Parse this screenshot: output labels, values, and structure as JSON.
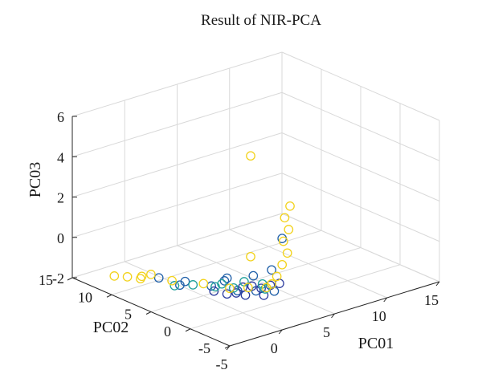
{
  "chart_data": {
    "type": "scatter",
    "title": "Result of NIR-PCA",
    "xlabel": "PC01",
    "ylabel": "PC02",
    "zlabel": "PC03",
    "x_ticks": [
      "-5",
      "0",
      "5",
      "10",
      "15"
    ],
    "y_ticks": [
      "-5",
      "0",
      "5",
      "10",
      "15"
    ],
    "z_ticks": [
      "-2",
      "0",
      "2",
      "4",
      "6"
    ],
    "xlim": [
      -5,
      15
    ],
    "ylim": [
      -5,
      15
    ],
    "zlim": [
      -2,
      6
    ],
    "grid": true,
    "marker": "open-circle",
    "series": [
      {
        "color": "#1f5fa8",
        "points": [
          [
            -2.0,
            8.0,
            -1.3
          ],
          [
            -1.0,
            6.0,
            -1.3
          ],
          [
            0.0,
            4.0,
            -1.35
          ],
          [
            1.0,
            2.0,
            -1.4
          ],
          [
            2.0,
            1.0,
            -1.4
          ],
          [
            3.0,
            0.0,
            -1.4
          ],
          [
            0.5,
            3.0,
            -1.0
          ],
          [
            2.5,
            2.0,
            -0.9
          ],
          [
            3.5,
            1.0,
            -0.6
          ],
          [
            4.5,
            1.0,
            0.8
          ],
          [
            1.5,
            4.0,
            -1.2
          ],
          [
            -1.5,
            6.0,
            -1.4
          ]
        ]
      },
      {
        "color": "#2d3c9e",
        "points": [
          [
            0.0,
            2.0,
            -1.4
          ],
          [
            1.0,
            1.0,
            -1.45
          ],
          [
            2.0,
            0.0,
            -1.45
          ],
          [
            1.5,
            2.0,
            -1.3
          ],
          [
            2.5,
            1.0,
            -1.35
          ],
          [
            3.0,
            0.5,
            -1.2
          ],
          [
            3.5,
            0.0,
            -1.1
          ],
          [
            0.5,
            1.5,
            -1.35
          ],
          [
            2.0,
            1.5,
            -1.25
          ],
          [
            -0.5,
            3.0,
            -1.35
          ]
        ]
      },
      {
        "color": "#1fa09a",
        "points": [
          [
            -1.0,
            5.0,
            -1.3
          ],
          [
            0.0,
            3.5,
            -1.3
          ],
          [
            1.0,
            2.5,
            -1.35
          ],
          [
            2.0,
            2.5,
            -1.2
          ],
          [
            -2.0,
            6.0,
            -1.35
          ],
          [
            3.0,
            1.5,
            -1.3
          ],
          [
            1.0,
            4.0,
            -1.4
          ],
          [
            2.5,
            0.5,
            -1.3
          ]
        ]
      },
      {
        "color": "#f2d21b",
        "points": [
          [
            -4.0,
            11.0,
            -1.4
          ],
          [
            -3.5,
            10.0,
            -1.35
          ],
          [
            -3.0,
            9.0,
            -1.35
          ],
          [
            -2.5,
            9.5,
            -1.4
          ],
          [
            -2.0,
            9.0,
            -1.3
          ],
          [
            -1.5,
            7.0,
            -1.35
          ],
          [
            0.0,
            5.0,
            -1.4
          ],
          [
            1.0,
            3.0,
            -1.45
          ],
          [
            2.0,
            2.0,
            -1.4
          ],
          [
            3.0,
            1.0,
            -1.4
          ],
          [
            3.5,
            1.0,
            -1.3
          ],
          [
            4.0,
            1.0,
            -1.0
          ],
          [
            4.5,
            1.0,
            -0.5
          ],
          [
            5.0,
            1.0,
            0.0
          ],
          [
            5.0,
            1.5,
            0.5
          ],
          [
            5.5,
            1.5,
            1.0
          ],
          [
            5.5,
            2.0,
            1.5
          ],
          [
            6.0,
            2.0,
            2.0
          ],
          [
            3.0,
            3.0,
            -0.2
          ],
          [
            3.0,
            3.0,
            4.8
          ]
        ]
      }
    ]
  }
}
